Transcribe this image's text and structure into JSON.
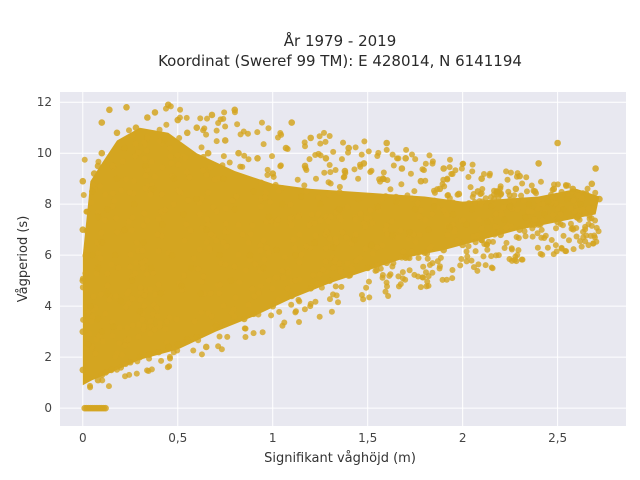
{
  "chart_data": {
    "type": "scatter",
    "title": "År 1979 - 2019",
    "subtitle": "Koordinat (Sweref 99 TM): E 428014, N 6141194",
    "xlabel": "Signifikant våghöjd (m)",
    "ylabel": "Vågperiod (s)",
    "xlim": [
      -0.12,
      2.86
    ],
    "ylim": [
      -0.7,
      12.4
    ],
    "xticks": [
      0,
      0.5,
      1,
      1.5,
      2,
      2.5
    ],
    "xtick_labels": [
      "0",
      "0,5",
      "1",
      "1,5",
      "2",
      "2,5"
    ],
    "yticks": [
      0,
      2,
      4,
      6,
      8,
      10,
      12
    ],
    "ytick_labels": [
      "0",
      "2",
      "4",
      "6",
      "8",
      "10",
      "12"
    ],
    "grid": true,
    "legend": "none",
    "marker_color": "#d4a520",
    "plot_background": "#e8e8f0",
    "series": [
      {
        "values_hint": "dense cloud",
        "points": [
          [
            0.01,
            0
          ],
          [
            0.02,
            0
          ],
          [
            0.03,
            0
          ],
          [
            0.04,
            0
          ],
          [
            0.05,
            0
          ],
          [
            0.06,
            0
          ],
          [
            0.07,
            0
          ],
          [
            0.08,
            0
          ],
          [
            0.09,
            0
          ],
          [
            0.1,
            0
          ],
          [
            0.11,
            0
          ],
          [
            0.12,
            0
          ],
          [
            0.0,
            1.5
          ],
          [
            0.0,
            3.0
          ],
          [
            0.0,
            5.0
          ],
          [
            0.0,
            7.0
          ],
          [
            0.0,
            8.9
          ],
          [
            0.02,
            1.2
          ],
          [
            0.03,
            2.5
          ],
          [
            0.04,
            4.0
          ],
          [
            0.05,
            6.0
          ],
          [
            0.05,
            8.5
          ],
          [
            0.06,
            9.2
          ],
          [
            0.08,
            1.1
          ],
          [
            0.08,
            3.5
          ],
          [
            0.08,
            5.5
          ],
          [
            0.08,
            7.5
          ],
          [
            0.08,
            9.5
          ],
          [
            0.1,
            1.3
          ],
          [
            0.1,
            3.0
          ],
          [
            0.1,
            6.5
          ],
          [
            0.1,
            10.0
          ],
          [
            0.1,
            11.2
          ],
          [
            0.12,
            1.4
          ],
          [
            0.13,
            4.5
          ],
          [
            0.13,
            7.8
          ],
          [
            0.14,
            11.7
          ],
          [
            0.15,
            1.5
          ],
          [
            0.16,
            3.2
          ],
          [
            0.17,
            6.0
          ],
          [
            0.18,
            9.0
          ],
          [
            0.18,
            10.8
          ],
          [
            0.2,
            1.6
          ],
          [
            0.2,
            4.2
          ],
          [
            0.22,
            7.0
          ],
          [
            0.22,
            10.2
          ],
          [
            0.23,
            11.8
          ],
          [
            0.25,
            1.8
          ],
          [
            0.26,
            5.0
          ],
          [
            0.27,
            8.0
          ],
          [
            0.28,
            11.0
          ],
          [
            0.3,
            2.0
          ],
          [
            0.3,
            3.8
          ],
          [
            0.32,
            6.5
          ],
          [
            0.33,
            9.5
          ],
          [
            0.34,
            11.4
          ],
          [
            0.35,
            2.1
          ],
          [
            0.36,
            5.5
          ],
          [
            0.37,
            8.6
          ],
          [
            0.38,
            11.6
          ],
          [
            0.4,
            2.2
          ],
          [
            0.41,
            4.5
          ],
          [
            0.42,
            7.2
          ],
          [
            0.43,
            10.5
          ],
          [
            0.45,
            11.9
          ],
          [
            0.45,
            2.4
          ],
          [
            0.47,
            6.0
          ],
          [
            0.48,
            9.0
          ],
          [
            0.5,
            11.3
          ],
          [
            0.5,
            2.5
          ],
          [
            0.52,
            4.8
          ],
          [
            0.53,
            7.6
          ],
          [
            0.55,
            10.8
          ],
          [
            0.55,
            2.7
          ],
          [
            0.57,
            5.5
          ],
          [
            0.6,
            8.2
          ],
          [
            0.6,
            11.0
          ],
          [
            0.6,
            2.8
          ],
          [
            0.62,
            4.5
          ],
          [
            0.65,
            7.0
          ],
          [
            0.66,
            10.0
          ],
          [
            0.68,
            11.5
          ],
          [
            0.65,
            2.4
          ],
          [
            0.7,
            3.2
          ],
          [
            0.72,
            6.0
          ],
          [
            0.74,
            9.0
          ],
          [
            0.75,
            10.5
          ],
          [
            0.75,
            3.3
          ],
          [
            0.78,
            5.0
          ],
          [
            0.8,
            7.8
          ],
          [
            0.82,
            10.0
          ],
          [
            0.8,
            11.7
          ],
          [
            0.85,
            3.5
          ],
          [
            0.88,
            6.0
          ],
          [
            0.9,
            8.5
          ],
          [
            0.92,
            9.8
          ],
          [
            0.9,
            3.7
          ],
          [
            0.95,
            5.5
          ],
          [
            0.98,
            7.5
          ],
          [
            1.0,
            9.2
          ],
          [
            1.0,
            4.0
          ],
          [
            1.02,
            6.2
          ],
          [
            1.05,
            8.0
          ],
          [
            1.07,
            10.2
          ],
          [
            1.1,
            11.2
          ],
          [
            1.1,
            4.4
          ],
          [
            1.12,
            6.0
          ],
          [
            1.15,
            8.3
          ],
          [
            1.17,
            9.5
          ],
          [
            1.2,
            10.6
          ],
          [
            1.2,
            4.7
          ],
          [
            1.22,
            6.5
          ],
          [
            1.25,
            8.0
          ],
          [
            1.28,
            9.8
          ],
          [
            1.3,
            5.0
          ],
          [
            1.32,
            6.3
          ],
          [
            1.35,
            7.8
          ],
          [
            1.38,
            9.3
          ],
          [
            1.4,
            10.2
          ],
          [
            1.4,
            5.2
          ],
          [
            1.43,
            6.6
          ],
          [
            1.45,
            8.2
          ],
          [
            1.48,
            9.6
          ],
          [
            1.5,
            5.5
          ],
          [
            1.52,
            6.4
          ],
          [
            1.55,
            7.9
          ],
          [
            1.58,
            9.0
          ],
          [
            1.6,
            10.4
          ],
          [
            1.6,
            5.7
          ],
          [
            1.63,
            6.8
          ],
          [
            1.65,
            8.1
          ],
          [
            1.68,
            9.4
          ],
          [
            1.7,
            9.8
          ],
          [
            1.7,
            5.9
          ],
          [
            1.72,
            6.9
          ],
          [
            1.75,
            7.8
          ],
          [
            1.78,
            8.9
          ],
          [
            1.8,
            6.1
          ],
          [
            1.82,
            7.0
          ],
          [
            1.85,
            7.9
          ],
          [
            1.88,
            8.6
          ],
          [
            1.9,
            9.4
          ],
          [
            1.9,
            6.2
          ],
          [
            1.93,
            7.1
          ],
          [
            1.95,
            7.6
          ],
          [
            1.98,
            8.4
          ],
          [
            2.0,
            6.4
          ],
          [
            2.02,
            7.2
          ],
          [
            2.05,
            7.8
          ],
          [
            2.08,
            8.5
          ],
          [
            2.1,
            9.0
          ],
          [
            2.1,
            6.6
          ],
          [
            2.13,
            7.3
          ],
          [
            2.15,
            7.9
          ],
          [
            2.18,
            8.5
          ],
          [
            2.2,
            6.8
          ],
          [
            2.22,
            7.4
          ],
          [
            2.25,
            7.9
          ],
          [
            2.28,
            8.6
          ],
          [
            2.3,
            9.1
          ],
          [
            2.3,
            7.0
          ],
          [
            2.33,
            7.5
          ],
          [
            2.35,
            8.0
          ],
          [
            2.38,
            8.5
          ],
          [
            2.4,
            9.6
          ],
          [
            2.4,
            7.2
          ],
          [
            2.43,
            7.6
          ],
          [
            2.45,
            8.1
          ],
          [
            2.48,
            8.6
          ],
          [
            2.5,
            10.4
          ],
          [
            2.5,
            7.3
          ],
          [
            2.53,
            7.8
          ],
          [
            2.55,
            8.2
          ],
          [
            2.58,
            8.6
          ],
          [
            2.6,
            7.5
          ],
          [
            2.62,
            8.0
          ],
          [
            2.65,
            8.4
          ],
          [
            2.68,
            8.8
          ],
          [
            2.7,
            9.4
          ],
          [
            2.72,
            8.2
          ]
        ]
      }
    ]
  }
}
